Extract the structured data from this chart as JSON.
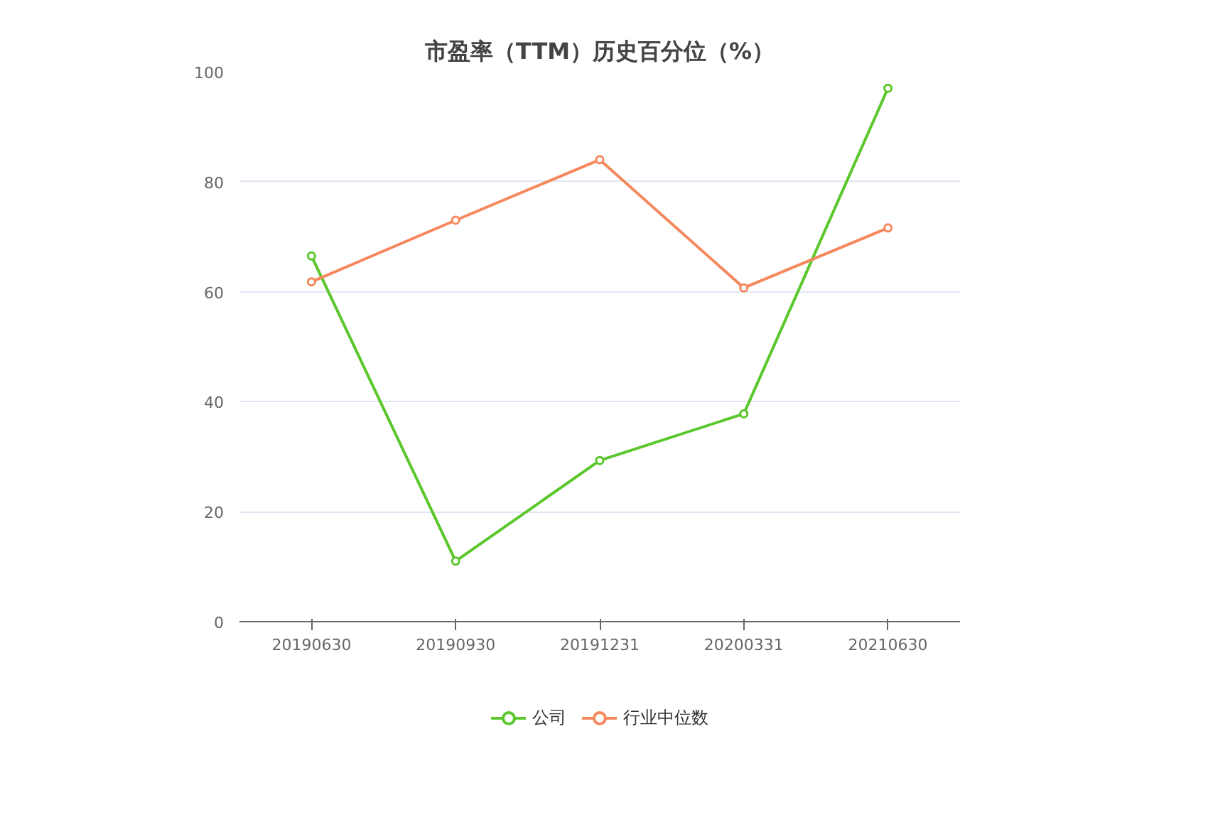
{
  "chart_data": {
    "type": "line",
    "title": "市盈率（TTM）历史百分位（%）",
    "categories": [
      "20190630",
      "20190930",
      "20191231",
      "20200331",
      "20210630"
    ],
    "series": [
      {
        "name": "公司",
        "color": "#5bc72c",
        "values": [
          66.5,
          11,
          29.3,
          37.8,
          97
        ]
      },
      {
        "name": "行业中位数",
        "color": "#f5885c",
        "values": [
          61.8,
          73,
          84,
          60.7,
          71.6
        ]
      }
    ],
    "ylim": [
      0,
      100
    ],
    "yticks": [
      0,
      20,
      40,
      60,
      80,
      100
    ],
    "grid": "y",
    "legend": "bottom",
    "marker": "circle",
    "line_style": "solid"
  }
}
